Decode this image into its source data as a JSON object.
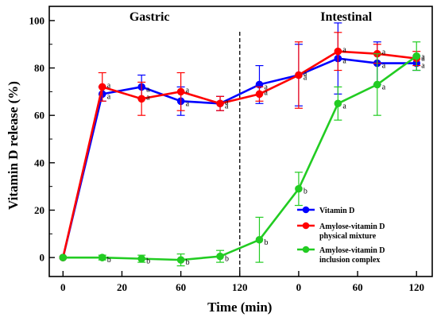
{
  "chart_data": {
    "type": "line",
    "ylabel": "Vitamin D release (%)",
    "xlabel": "Time (min)",
    "ylim": [
      -8,
      106
    ],
    "y_ticks": [
      0,
      20,
      40,
      60,
      80,
      100
    ],
    "x_tick_labels": [
      "0",
      "20",
      "60",
      "120",
      "0",
      "60",
      "120"
    ],
    "x_tick_positions": [
      0,
      60,
      120,
      180,
      240,
      300,
      360
    ],
    "phase_labels": [
      "Gastric",
      "Intestinal"
    ],
    "x_positions": [
      0,
      20,
      40,
      60,
      120,
      0,
      20,
      40,
      60,
      120
    ],
    "x_note": "Time resets at the gastric/intestinal boundary; the ten sampling points are drawn at evenly spaced positions.",
    "legend_position": "lower-right",
    "series": [
      {
        "name": "Vitamin D",
        "color": "#0000ff",
        "values": [
          0,
          69,
          72,
          66,
          65,
          73,
          77,
          84,
          82,
          82
        ],
        "errors": [
          0,
          3,
          5,
          6,
          3,
          8,
          13,
          15,
          9,
          3
        ],
        "labels": [
          "",
          "a",
          "a",
          "a",
          "a",
          "a",
          "a",
          "a",
          "a",
          "a"
        ]
      },
      {
        "name": "Amylose-vitamin D physical mixture",
        "legend_lines": [
          "Amylose-vitamin D",
          "physical mixture"
        ],
        "color": "#ff0000",
        "values": [
          0,
          72,
          67,
          70,
          65,
          69,
          77,
          87,
          86,
          84
        ],
        "errors": [
          0,
          6,
          7,
          8,
          3,
          3,
          14,
          8,
          4,
          3
        ],
        "labels": [
          "",
          "a",
          "a",
          "a",
          "a",
          "a",
          "a",
          "a",
          "a",
          "a"
        ]
      },
      {
        "name": "Amylose-vitamin D inclusion complex",
        "legend_lines": [
          "Amylose-vitamin D",
          "inclusion complex"
        ],
        "color": "#22cc22",
        "values": [
          0,
          0,
          -0.5,
          -1,
          0.5,
          7.5,
          29,
          65,
          73,
          85
        ],
        "errors": [
          0,
          1,
          1.5,
          2.5,
          2.5,
          9.5,
          7,
          7,
          13,
          6
        ],
        "labels": [
          "",
          "b",
          "b",
          "b",
          "b",
          "b",
          "b",
          "a",
          "a",
          "a"
        ]
      }
    ]
  }
}
